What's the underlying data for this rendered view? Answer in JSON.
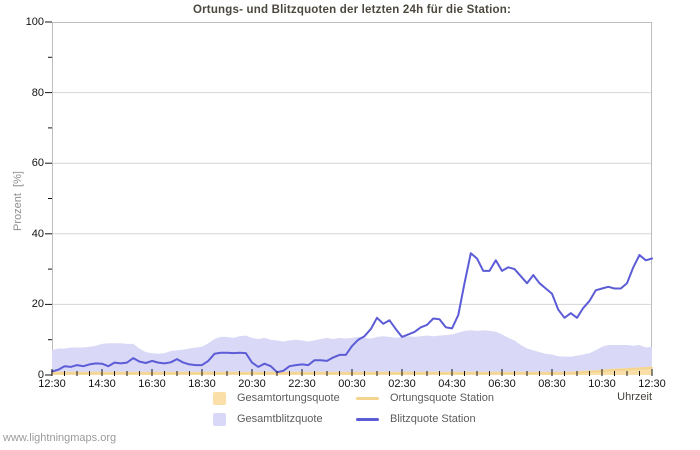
{
  "footer": {
    "watermark": "www.lightningmaps.org"
  },
  "chart_data": {
    "type": "area",
    "title": "Ortungs- und Blitzquoten der letzten 24h für die Station:",
    "ylabel": "Prozent  [%]",
    "xlabel": "Uhrzeit",
    "ylim": [
      0,
      100
    ],
    "grid": "horizontal-major",
    "legend_position": "bottom-center",
    "colors": {
      "grid": "#d6d6d6",
      "border": "#bdbdbd",
      "tick": "#141414"
    },
    "x_tick_labels": [
      "12:30",
      "14:30",
      "16:30",
      "18:30",
      "20:30",
      "22:30",
      "00:30",
      "02:30",
      "04:30",
      "06:30",
      "08:30",
      "10:30",
      "12:30"
    ],
    "y_ticks": {
      "major": [
        0,
        20,
        40,
        60,
        80,
        100
      ],
      "minor": [
        10,
        30,
        50,
        70,
        90
      ]
    },
    "x_minor_every": 2,
    "x_major_every": 8,
    "time_step_minutes": 15,
    "legend": [
      {
        "label": "Gesamtortungsquote",
        "swatch": "area",
        "color": "#fadfa8"
      },
      {
        "label": "Ortungsquote Station",
        "swatch": "line",
        "color": "#f3d48e"
      },
      {
        "label": "Gesamtblitzquote",
        "swatch": "area",
        "color": "#d9d9f7"
      },
      {
        "label": "Blitzquote Station",
        "swatch": "line",
        "color": "#5c5cd6"
      }
    ],
    "series": [
      {
        "name": "Gesamtblitzquote",
        "type": "area",
        "color": "#d9d9f7",
        "values": [
          7.0,
          7.5,
          7.5,
          7.8,
          7.8,
          7.8,
          8.0,
          8.3,
          8.8,
          9.0,
          9.0,
          9.0,
          8.8,
          8.8,
          7.5,
          6.5,
          6.2,
          6.0,
          6.2,
          6.8,
          7.0,
          7.2,
          7.5,
          7.8,
          8.0,
          9.0,
          10.2,
          10.8,
          10.8,
          10.5,
          11.0,
          11.2,
          10.5,
          10.2,
          10.5,
          10.0,
          9.8,
          9.5,
          9.8,
          10.0,
          9.8,
          9.5,
          9.8,
          10.2,
          10.5,
          10.2,
          10.5,
          10.3,
          10.5,
          10.8,
          10.5,
          10.3,
          10.8,
          11.0,
          10.8,
          10.5,
          10.8,
          11.0,
          10.8,
          11.0,
          11.2,
          11.0,
          11.2,
          11.3,
          11.5,
          12.0,
          12.5,
          12.7,
          12.5,
          12.7,
          12.5,
          12.3,
          11.5,
          10.5,
          9.8,
          8.5,
          7.5,
          7.0,
          6.5,
          6.0,
          5.8,
          5.3,
          5.2,
          5.2,
          5.5,
          5.8,
          6.2,
          7.0,
          8.0,
          8.5,
          8.5,
          8.5,
          8.5,
          8.3,
          8.5,
          7.8,
          8.0
        ]
      },
      {
        "name": "Gesamtortungsquote",
        "type": "area",
        "color": "#fadfa8",
        "values": [
          0.9,
          0.9,
          0.9,
          0.9,
          0.9,
          0.9,
          0.9,
          0.9,
          0.9,
          0.9,
          0.9,
          0.9,
          0.9,
          0.9,
          0.9,
          0.9,
          0.9,
          0.9,
          0.9,
          0.9,
          0.9,
          0.9,
          0.9,
          0.9,
          0.9,
          0.9,
          0.9,
          0.9,
          0.9,
          0.9,
          0.9,
          0.9,
          0.9,
          0.9,
          0.9,
          0.9,
          0.9,
          0.9,
          0.9,
          0.9,
          0.9,
          0.9,
          0.9,
          0.9,
          0.9,
          0.9,
          0.9,
          0.9,
          0.9,
          0.9,
          0.9,
          0.9,
          0.9,
          0.9,
          0.9,
          0.9,
          0.9,
          0.9,
          0.9,
          0.9,
          0.9,
          0.9,
          0.9,
          0.9,
          0.9,
          0.9,
          0.9,
          0.9,
          0.9,
          0.9,
          0.9,
          0.9,
          0.9,
          0.9,
          0.9,
          0.9,
          0.9,
          0.9,
          0.9,
          0.9,
          0.9,
          0.9,
          0.9,
          0.9,
          1.1,
          1.2,
          1.3,
          1.4,
          1.5,
          1.7,
          1.8,
          1.9,
          2.0,
          2.1,
          2.2,
          2.3,
          2.4
        ]
      },
      {
        "name": "Ortungsquote Station",
        "type": "line",
        "color": "#f3d48e",
        "values": [
          0.5,
          0.5,
          0.5,
          0.5,
          0.5,
          0.5,
          0.5,
          0.5,
          0.5,
          0.5,
          0.5,
          0.5,
          0.5,
          0.5,
          0.5,
          0.5,
          0.5,
          0.5,
          0.5,
          0.5,
          0.5,
          0.5,
          0.5,
          0.5,
          0.5,
          0.5,
          0.5,
          0.5,
          0.5,
          0.5,
          0.5,
          0.5,
          0.5,
          0.5,
          0.5,
          0.5,
          0.5,
          0.5,
          0.5,
          0.5,
          0.5,
          0.5,
          0.5,
          0.5,
          0.5,
          0.5,
          0.5,
          0.5,
          0.5,
          0.5,
          0.5,
          0.5,
          0.5,
          0.5,
          0.5,
          0.5,
          0.5,
          0.5,
          0.5,
          0.5,
          0.5,
          0.5,
          0.5,
          0.5,
          0.5,
          0.5,
          0.5,
          0.5,
          0.5,
          0.5,
          0.5,
          0.5,
          0.5,
          0.5,
          0.5,
          0.5,
          0.5,
          0.5,
          0.5,
          0.5,
          0.5,
          0.5,
          0.5,
          0.5,
          0.6,
          0.8,
          0.9,
          1.0,
          1.1,
          1.3,
          1.4,
          1.5,
          1.6,
          1.7,
          1.8,
          1.9,
          2.0
        ]
      },
      {
        "name": "Blitzquote Station",
        "type": "line",
        "color": "#5c5cd6",
        "values": [
          1.0,
          1.5,
          2.5,
          2.3,
          2.8,
          2.5,
          3.0,
          3.3,
          3.2,
          2.5,
          3.5,
          3.3,
          3.5,
          4.8,
          3.8,
          3.4,
          4.0,
          3.5,
          3.3,
          3.6,
          4.5,
          3.5,
          3.0,
          2.8,
          2.8,
          4.0,
          6.0,
          6.3,
          6.3,
          6.2,
          6.3,
          6.2,
          3.5,
          2.3,
          3.2,
          2.5,
          0.8,
          1.2,
          2.5,
          2.8,
          3.0,
          2.8,
          4.2,
          4.2,
          4.0,
          5.0,
          5.7,
          5.7,
          8.2,
          10.0,
          11.0,
          13.0,
          16.2,
          14.5,
          15.5,
          13.0,
          10.8,
          11.5,
          12.2,
          13.5,
          14.2,
          16.0,
          15.8,
          13.5,
          13.2,
          17.0,
          26.0,
          34.5,
          33.0,
          29.5,
          29.5,
          32.5,
          29.5,
          30.5,
          30.0,
          28.0,
          26.0,
          28.3,
          26.0,
          24.5,
          23.0,
          18.5,
          16.2,
          17.5,
          16.2,
          19.0,
          21.0,
          24.0,
          24.5,
          25.0,
          24.5,
          24.5,
          26.0,
          30.5,
          34.0,
          32.5,
          33.0
        ]
      }
    ]
  }
}
